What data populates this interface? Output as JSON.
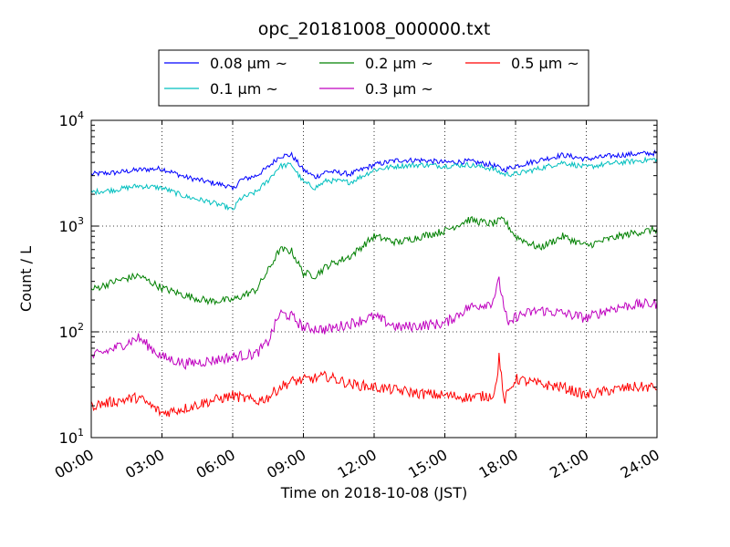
{
  "chart_data": {
    "type": "line",
    "title": "opc_20181008_000000.txt",
    "xlabel": "Time on 2018-10-08 (JST)",
    "ylabel": "Count / L",
    "yscale": "log",
    "xlim": [
      0,
      24
    ],
    "ylim": [
      10,
      10000
    ],
    "grid": true,
    "legend_position": "top",
    "x_ticks": [
      "00:00",
      "03:00",
      "06:00",
      "09:00",
      "12:00",
      "15:00",
      "18:00",
      "21:00",
      "24:00"
    ],
    "y_ticks": [
      {
        "base": "10",
        "exp": "1",
        "value": 10
      },
      {
        "base": "10",
        "exp": "2",
        "value": 100
      },
      {
        "base": "10",
        "exp": "3",
        "value": 1000
      },
      {
        "base": "10",
        "exp": "4",
        "value": 10000
      }
    ],
    "series": [
      {
        "name": "0.08 μm ~",
        "color": "#0000ff",
        "points": [
          [
            0,
            3100
          ],
          [
            1,
            3200
          ],
          [
            2,
            3400
          ],
          [
            3,
            3500
          ],
          [
            4,
            2900
          ],
          [
            5,
            2600
          ],
          [
            5.8,
            2400
          ],
          [
            6,
            2200
          ],
          [
            6.3,
            2700
          ],
          [
            7,
            3000
          ],
          [
            7.5,
            3600
          ],
          [
            8,
            4600
          ],
          [
            8.5,
            4700
          ],
          [
            9,
            3400
          ],
          [
            9.5,
            2900
          ],
          [
            10,
            3300
          ],
          [
            11,
            3100
          ],
          [
            12,
            3800
          ],
          [
            13,
            4200
          ],
          [
            14,
            4200
          ],
          [
            15,
            4000
          ],
          [
            16,
            4100
          ],
          [
            17,
            3800
          ],
          [
            17.5,
            3400
          ],
          [
            18,
            3700
          ],
          [
            19,
            4200
          ],
          [
            20,
            4700
          ],
          [
            21,
            4300
          ],
          [
            22,
            4600
          ],
          [
            23,
            4800
          ],
          [
            24,
            4900
          ]
        ]
      },
      {
        "name": "0.1 μm ~",
        "color": "#00bfbf",
        "points": [
          [
            0,
            2100
          ],
          [
            1,
            2200
          ],
          [
            2,
            2400
          ],
          [
            3,
            2300
          ],
          [
            4,
            1900
          ],
          [
            5,
            1700
          ],
          [
            5.8,
            1500
          ],
          [
            6,
            1400
          ],
          [
            6.3,
            1800
          ],
          [
            7,
            2100
          ],
          [
            7.5,
            2700
          ],
          [
            8,
            3700
          ],
          [
            8.5,
            3800
          ],
          [
            9,
            2600
          ],
          [
            9.5,
            2300
          ],
          [
            10,
            2700
          ],
          [
            11,
            2600
          ],
          [
            12,
            3400
          ],
          [
            13,
            3700
          ],
          [
            14,
            3800
          ],
          [
            15,
            3700
          ],
          [
            16,
            3800
          ],
          [
            17,
            3500
          ],
          [
            17.5,
            3100
          ],
          [
            18,
            3100
          ],
          [
            19,
            3500
          ],
          [
            20,
            4000
          ],
          [
            21,
            3600
          ],
          [
            22,
            3900
          ],
          [
            23,
            4100
          ],
          [
            24,
            4300
          ]
        ]
      },
      {
        "name": "0.2 μm ~",
        "color": "#008000",
        "points": [
          [
            0,
            250
          ],
          [
            1,
            300
          ],
          [
            2,
            340
          ],
          [
            3,
            260
          ],
          [
            4,
            220
          ],
          [
            5,
            195
          ],
          [
            6,
            200
          ],
          [
            7,
            250
          ],
          [
            7.5,
            380
          ],
          [
            8,
            600
          ],
          [
            8.5,
            580
          ],
          [
            9,
            360
          ],
          [
            9.5,
            340
          ],
          [
            10,
            420
          ],
          [
            11,
            520
          ],
          [
            12,
            800
          ],
          [
            13,
            700
          ],
          [
            14,
            800
          ],
          [
            15,
            900
          ],
          [
            16,
            1150
          ],
          [
            17,
            1050
          ],
          [
            17.5,
            1150
          ],
          [
            18,
            800
          ],
          [
            19,
            620
          ],
          [
            20,
            800
          ],
          [
            21,
            650
          ],
          [
            22,
            760
          ],
          [
            23,
            860
          ],
          [
            24,
            930
          ]
        ]
      },
      {
        "name": "0.3 μm ~",
        "color": "#bf00bf",
        "points": [
          [
            0,
            58
          ],
          [
            1,
            70
          ],
          [
            2,
            88
          ],
          [
            3,
            58
          ],
          [
            4,
            50
          ],
          [
            5,
            53
          ],
          [
            6,
            58
          ],
          [
            7,
            62
          ],
          [
            7.5,
            80
          ],
          [
            8,
            150
          ],
          [
            8.5,
            140
          ],
          [
            9,
            110
          ],
          [
            10,
            105
          ],
          [
            11,
            120
          ],
          [
            12,
            140
          ],
          [
            13,
            110
          ],
          [
            14,
            115
          ],
          [
            15,
            120
          ],
          [
            16,
            170
          ],
          [
            17,
            190
          ],
          [
            17.3,
            300
          ],
          [
            17.7,
            110
          ],
          [
            18,
            140
          ],
          [
            19,
            160
          ],
          [
            20,
            150
          ],
          [
            21,
            135
          ],
          [
            22,
            165
          ],
          [
            23,
            180
          ],
          [
            24,
            185
          ]
        ]
      },
      {
        "name": "0.5 μm ~",
        "color": "#ff0000",
        "points": [
          [
            0,
            20
          ],
          [
            1,
            22
          ],
          [
            2,
            24
          ],
          [
            3,
            17
          ],
          [
            4,
            19
          ],
          [
            5,
            22
          ],
          [
            6,
            25
          ],
          [
            7,
            22
          ],
          [
            7.5,
            24
          ],
          [
            8,
            30
          ],
          [
            8.5,
            34
          ],
          [
            9,
            35
          ],
          [
            10,
            38
          ],
          [
            11,
            32
          ],
          [
            12,
            30
          ],
          [
            13,
            28
          ],
          [
            14,
            26
          ],
          [
            15,
            25
          ],
          [
            16,
            24
          ],
          [
            17,
            25
          ],
          [
            17.2,
            32
          ],
          [
            17.3,
            62
          ],
          [
            17.5,
            22
          ],
          [
            18,
            36
          ],
          [
            19,
            32
          ],
          [
            20,
            30
          ],
          [
            21,
            25
          ],
          [
            22,
            28
          ],
          [
            23,
            30
          ],
          [
            24,
            30
          ]
        ]
      }
    ]
  }
}
